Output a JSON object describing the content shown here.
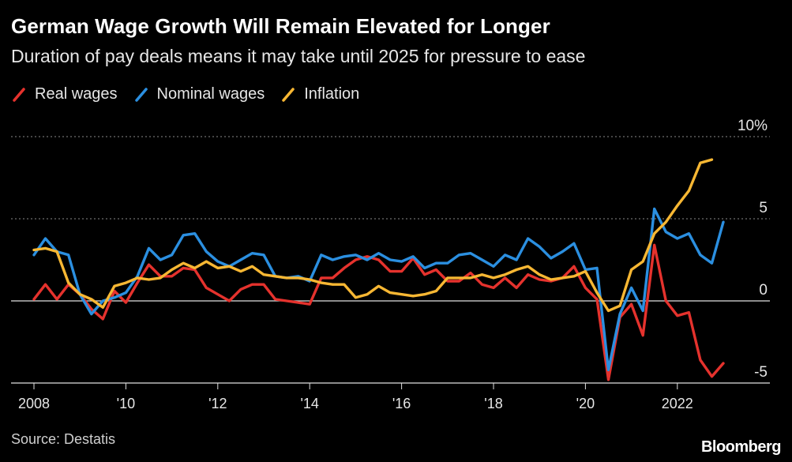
{
  "header": {
    "title": "German Wage Growth Will Remain Elevated for Longer",
    "subtitle": "Duration of pay deals means it may take until 2025 for pressure to ease"
  },
  "footer": {
    "source": "Source: Destatis",
    "brand": "Bloomberg"
  },
  "chart_data": {
    "type": "line",
    "y_unit": "%",
    "ylim": [
      -5,
      10
    ],
    "yticks": [
      {
        "value": 10,
        "label": "10%"
      },
      {
        "value": 5,
        "label": "5"
      },
      {
        "value": 0,
        "label": "0"
      },
      {
        "value": -5,
        "label": "-5"
      }
    ],
    "xlim": [
      2008,
      2023.6
    ],
    "xticks": [
      {
        "value": 2008,
        "label": "2008"
      },
      {
        "value": 2010,
        "label": "'10"
      },
      {
        "value": 2012,
        "label": "'12"
      },
      {
        "value": 2014,
        "label": "'14"
      },
      {
        "value": 2016,
        "label": "'16"
      },
      {
        "value": 2018,
        "label": "'18"
      },
      {
        "value": 2020,
        "label": "'20"
      },
      {
        "value": 2022,
        "label": "2022"
      }
    ],
    "grid": true,
    "legend_position": "top-left",
    "series": [
      {
        "name": "Real wages",
        "color": "#e5322d",
        "x": [
          2008,
          2008.25,
          2008.5,
          2008.75,
          2009,
          2009.25,
          2009.5,
          2009.75,
          2010,
          2010.25,
          2010.5,
          2010.75,
          2011,
          2011.25,
          2011.5,
          2011.75,
          2012,
          2012.25,
          2012.5,
          2012.75,
          2013,
          2013.25,
          2013.5,
          2013.75,
          2014,
          2014.25,
          2014.5,
          2014.75,
          2015,
          2015.25,
          2015.5,
          2015.75,
          2016,
          2016.25,
          2016.5,
          2016.75,
          2017,
          2017.25,
          2017.5,
          2017.75,
          2018,
          2018.25,
          2018.5,
          2018.75,
          2019,
          2019.25,
          2019.5,
          2019.75,
          2020,
          2020.25,
          2020.5,
          2020.75,
          2021,
          2021.25,
          2021.5,
          2021.75,
          2022,
          2022.25,
          2022.5,
          2022.75,
          2023
        ],
        "values": [
          0.1,
          1.0,
          0.1,
          1.0,
          0.4,
          -0.5,
          -1.1,
          0.6,
          -0.1,
          1.1,
          2.2,
          1.5,
          1.5,
          2.0,
          1.9,
          0.8,
          0.4,
          0.0,
          0.7,
          1.0,
          1.0,
          0.1,
          0.0,
          -0.1,
          -0.2,
          1.4,
          1.4,
          2.0,
          2.5,
          2.7,
          2.5,
          1.8,
          1.8,
          2.6,
          1.6,
          1.9,
          1.2,
          1.2,
          1.7,
          1.0,
          0.8,
          1.4,
          0.8,
          1.6,
          1.3,
          1.2,
          1.4,
          2.1,
          0.8,
          0.1,
          -4.8,
          -1.0,
          -0.2,
          -2.1,
          3.4,
          0.0,
          -0.9,
          -0.7,
          -3.6,
          -4.6,
          -3.8
        ]
      },
      {
        "name": "Nominal wages",
        "color": "#2b8fe0",
        "x": [
          2008,
          2008.25,
          2008.5,
          2008.75,
          2009,
          2009.25,
          2009.5,
          2009.75,
          2010,
          2010.25,
          2010.5,
          2010.75,
          2011,
          2011.25,
          2011.5,
          2011.75,
          2012,
          2012.25,
          2012.5,
          2012.75,
          2013,
          2013.25,
          2013.5,
          2013.75,
          2014,
          2014.25,
          2014.5,
          2014.75,
          2015,
          2015.25,
          2015.5,
          2015.75,
          2016,
          2016.25,
          2016.5,
          2016.75,
          2017,
          2017.25,
          2017.5,
          2017.75,
          2018,
          2018.25,
          2018.5,
          2018.75,
          2019,
          2019.25,
          2019.5,
          2019.75,
          2020,
          2020.25,
          2020.5,
          2020.75,
          2021,
          2021.25,
          2021.5,
          2021.75,
          2022,
          2022.25,
          2022.5,
          2022.75,
          2023
        ],
        "values": [
          2.8,
          3.8,
          3.0,
          2.8,
          0.4,
          -0.8,
          0.0,
          0.2,
          0.5,
          1.5,
          3.2,
          2.5,
          2.8,
          4.0,
          4.1,
          3.0,
          2.4,
          2.1,
          2.5,
          2.9,
          2.8,
          1.5,
          1.4,
          1.5,
          1.2,
          2.8,
          2.5,
          2.7,
          2.8,
          2.5,
          2.9,
          2.5,
          2.4,
          2.7,
          2.0,
          2.3,
          2.3,
          2.8,
          2.9,
          2.5,
          2.1,
          2.8,
          2.5,
          3.8,
          3.3,
          2.6,
          3.0,
          3.5,
          1.9,
          2.0,
          -4.2,
          -0.8,
          0.8,
          -0.6,
          5.6,
          4.2,
          3.8,
          4.1,
          2.8,
          2.3,
          4.8
        ]
      },
      {
        "name": "Inflation",
        "color": "#f7b733",
        "x": [
          2008,
          2008.25,
          2008.5,
          2008.75,
          2009,
          2009.25,
          2009.5,
          2009.75,
          2010,
          2010.25,
          2010.5,
          2010.75,
          2011,
          2011.25,
          2011.5,
          2011.75,
          2012,
          2012.25,
          2012.5,
          2012.75,
          2013,
          2013.25,
          2013.5,
          2013.75,
          2014,
          2014.25,
          2014.5,
          2014.75,
          2015,
          2015.25,
          2015.5,
          2015.75,
          2016,
          2016.25,
          2016.5,
          2016.75,
          2017,
          2017.25,
          2017.5,
          2017.75,
          2018,
          2018.25,
          2018.5,
          2018.75,
          2019,
          2019.25,
          2019.5,
          2019.75,
          2020,
          2020.25,
          2020.5,
          2020.75,
          2021,
          2021.25,
          2021.5,
          2021.75,
          2022,
          2022.25,
          2022.5,
          2022.75,
          2023
        ],
        "values": [
          3.1,
          3.2,
          3.0,
          1.1,
          0.4,
          0.1,
          -0.4,
          0.9,
          1.1,
          1.4,
          1.3,
          1.4,
          1.9,
          2.3,
          2.0,
          2.4,
          2.0,
          2.1,
          1.8,
          2.1,
          1.6,
          1.5,
          1.4,
          1.4,
          1.3,
          1.1,
          1.0,
          1.0,
          0.2,
          0.4,
          0.9,
          0.5,
          0.4,
          0.3,
          0.4,
          0.6,
          1.4,
          1.4,
          1.4,
          1.6,
          1.4,
          1.6,
          1.9,
          2.1,
          1.6,
          1.3,
          1.4,
          1.5,
          1.8,
          0.5,
          -0.6,
          -0.3,
          1.9,
          2.4,
          4.1,
          4.8,
          5.8,
          6.7,
          8.4,
          8.6,
          null
        ]
      }
    ]
  }
}
